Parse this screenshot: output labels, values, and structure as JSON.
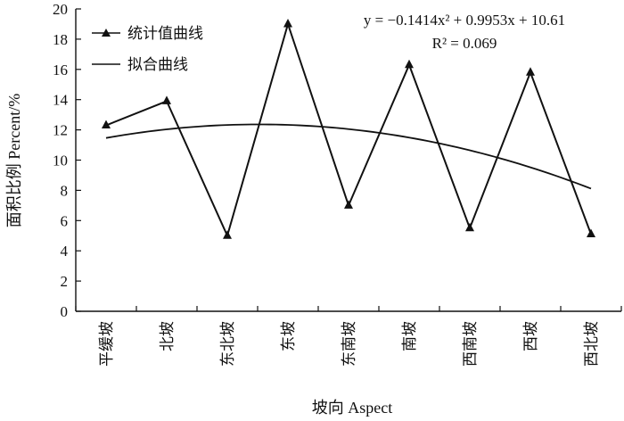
{
  "chart_data": {
    "type": "line",
    "categories": [
      "平缓坡",
      "北坡",
      "东北坡",
      "东坡",
      "东南坡",
      "南坡",
      "西南坡",
      "西坡",
      "西北坡"
    ],
    "series": [
      {
        "name": "统计值曲线",
        "values": [
          12.3,
          13.9,
          5.0,
          19.0,
          7.0,
          16.3,
          5.5,
          15.8,
          5.1
        ],
        "marker": "triangle"
      },
      {
        "name": "拟合曲线",
        "fit": {
          "a": -0.1414,
          "b": 0.9953,
          "c": 10.61
        }
      }
    ],
    "xlabel": "坡向 Aspect",
    "ylabel": "面积比例 Percent/%",
    "ylim": [
      0,
      20
    ],
    "yticks": [
      0,
      2,
      4,
      6,
      8,
      10,
      12,
      14,
      16,
      18,
      20
    ],
    "legend_position": "top-left",
    "annotations": {
      "equation": "y = −0.1414x² + 0.9953x + 10.61",
      "r_squared": "R² = 0.069"
    },
    "grid": false,
    "line_color": "#111111"
  }
}
